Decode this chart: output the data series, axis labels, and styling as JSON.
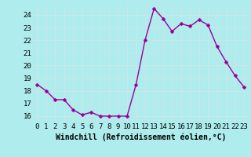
{
  "x": [
    0,
    1,
    2,
    3,
    4,
    5,
    6,
    7,
    8,
    9,
    10,
    11,
    12,
    13,
    14,
    15,
    16,
    17,
    18,
    19,
    20,
    21,
    22,
    23
  ],
  "y": [
    18.5,
    18.0,
    17.3,
    17.3,
    16.5,
    16.1,
    16.3,
    16.0,
    16.0,
    16.0,
    16.0,
    18.5,
    22.0,
    24.5,
    23.7,
    22.7,
    23.3,
    23.1,
    23.6,
    23.2,
    21.5,
    20.3,
    19.2,
    18.3
  ],
  "xlabel": "Windchill (Refroidissement éolien,°C)",
  "line_color": "#990099",
  "marker_color": "#990099",
  "bg_color": "#aeeced",
  "grid_color": "#c8e8e8",
  "xlim": [
    -0.5,
    23.5
  ],
  "ylim": [
    15.5,
    24.8
  ],
  "yticks": [
    16,
    17,
    18,
    19,
    20,
    21,
    22,
    23,
    24
  ],
  "xticks": [
    0,
    1,
    2,
    3,
    4,
    5,
    6,
    7,
    8,
    9,
    10,
    11,
    12,
    13,
    14,
    15,
    16,
    17,
    18,
    19,
    20,
    21,
    22,
    23
  ],
  "tick_label_fontsize": 6.5,
  "xlabel_fontsize": 7,
  "marker_size": 2.5,
  "line_width": 1.0
}
